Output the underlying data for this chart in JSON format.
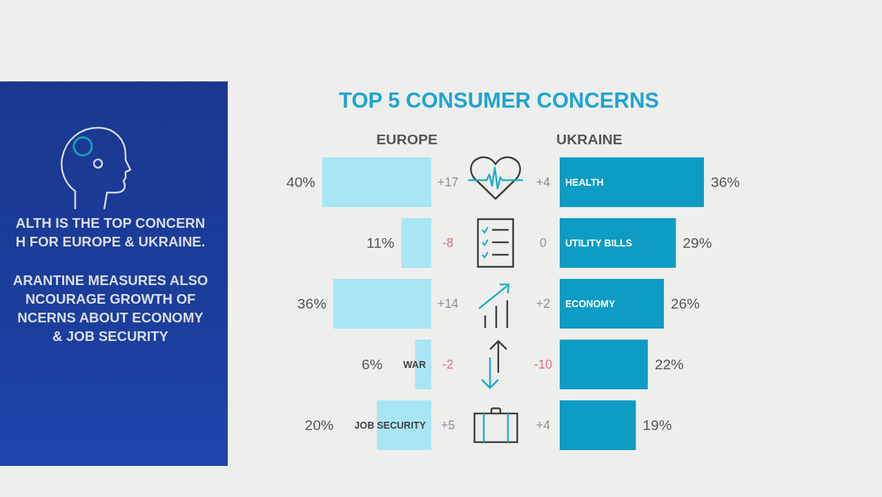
{
  "chart_data": [
    {
      "type": "other",
      "annotations": [
        "ALTH IS THE TOP CONCERN\nH FOR EUROPE & UKRAINE.",
        "ARANTINE MEASURES ALSO\nNCOURAGE GROWTH OF\nNCERNS ABOUT ECONOMY\n& JOB SECURITY"
      ]
    },
    {
      "type": "bar",
      "orientation": "horizontal",
      "title": "TOP 5 CONSUMER CONCERNS",
      "categories": [
        null,
        null,
        null,
        "WAR",
        "JOB SECURITY"
      ],
      "series": [
        {
          "name": "EUROPE",
          "color": "#a8e6f3",
          "values": [
            40,
            11,
            36,
            6,
            20
          ],
          "value_labels": [
            "40%",
            "11%",
            "36%",
            "6%",
            "20%"
          ]
        }
      ],
      "xlim": [
        40,
        0
      ],
      "tick_labels": false,
      "annotations": [
        "+17",
        "-8",
        "+14",
        "-2",
        "+5"
      ]
    },
    {
      "type": "bar",
      "orientation": "horizontal",
      "categories": [
        "HEALTH",
        "UTILITY BILLS",
        "ECONOMY",
        null,
        null
      ],
      "series": [
        {
          "name": "UKRAINE",
          "color": "#0e9cc4",
          "values": [
            36,
            29,
            26,
            22,
            19
          ],
          "value_labels": [
            "36%",
            "29%",
            "26%",
            "22%",
            "19%"
          ]
        }
      ],
      "xlim": [
        0,
        36
      ],
      "tick_labels": false,
      "annotations": [
        "+4",
        "0",
        "+2",
        "-10",
        "+4"
      ]
    }
  ]
}
